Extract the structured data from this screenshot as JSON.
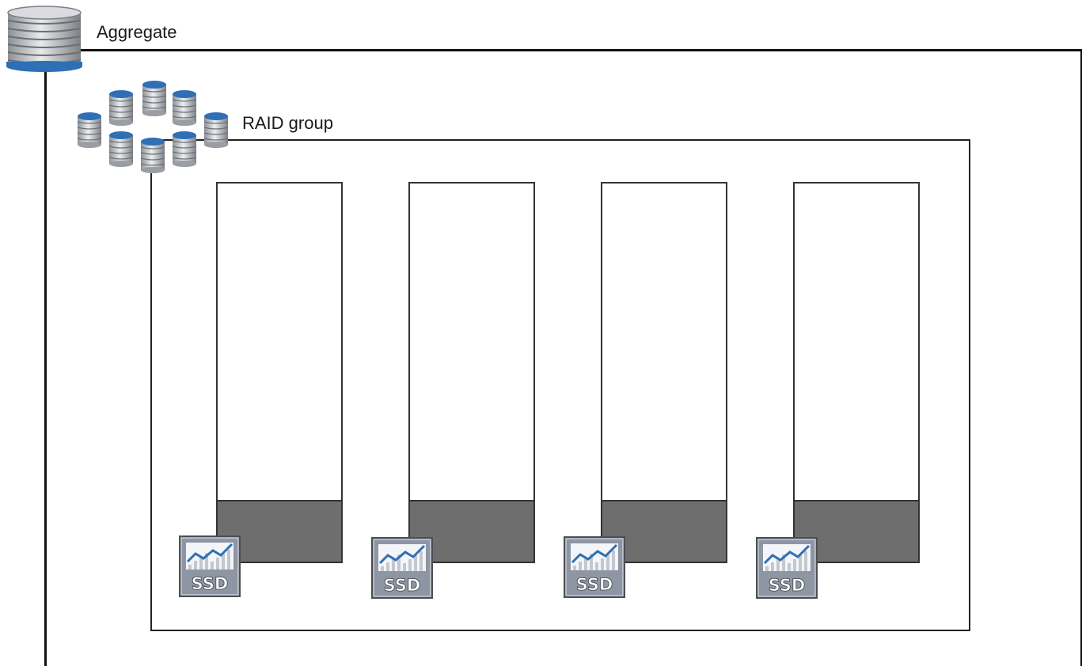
{
  "aggregate": {
    "label": "Aggregate",
    "icon": "database-stack-icon"
  },
  "raid_group": {
    "label": "RAID group",
    "icon": "disk-cluster-icon"
  },
  "disks": [
    {
      "ssd_label": "SSD",
      "icon": "ssd-icon"
    },
    {
      "ssd_label": "SSD",
      "icon": "ssd-icon"
    },
    {
      "ssd_label": "SSD",
      "icon": "ssd-icon"
    },
    {
      "ssd_label": "SSD",
      "icon": "ssd-icon"
    }
  ],
  "colors": {
    "disk_cap": "#2e6fb5",
    "disk_body": "#b9bcc0",
    "cache_region": "#6e6e6e",
    "ssd_badge": "#8e96a3",
    "line": "#111111"
  }
}
